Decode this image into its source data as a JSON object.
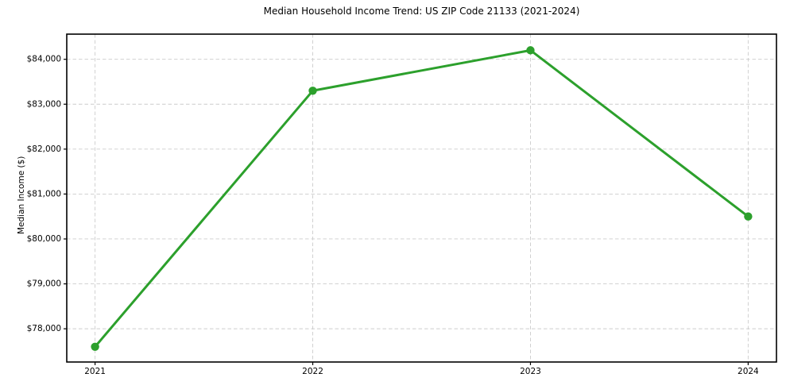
{
  "chart_data": {
    "type": "line",
    "title": "Median Household Income Trend: US ZIP Code 21133 (2021-2024)",
    "xlabel": "",
    "ylabel": "Median Income ($)",
    "x": [
      2021,
      2022,
      2023,
      2024
    ],
    "series": [
      {
        "name": "Median Household Income",
        "values": [
          77600,
          83300,
          84200,
          80500
        ]
      }
    ],
    "x_tick_labels": [
      "2021",
      "2022",
      "2023",
      "2024"
    ],
    "y_ticks": [
      78000,
      79000,
      80000,
      81000,
      82000,
      83000,
      84000
    ],
    "y_tick_prefix": "$",
    "xlim": [
      2020.87,
      2024.13
    ],
    "ylim": [
      77260,
      84560
    ],
    "grid": true,
    "grid_style": "dashed",
    "legend_position": "none",
    "colors": {
      "line": "#2ca02c",
      "marker": "#2ca02c",
      "grid": "#cccccc",
      "spine": "#000000",
      "text": "#000000",
      "background": "#ffffff"
    }
  }
}
